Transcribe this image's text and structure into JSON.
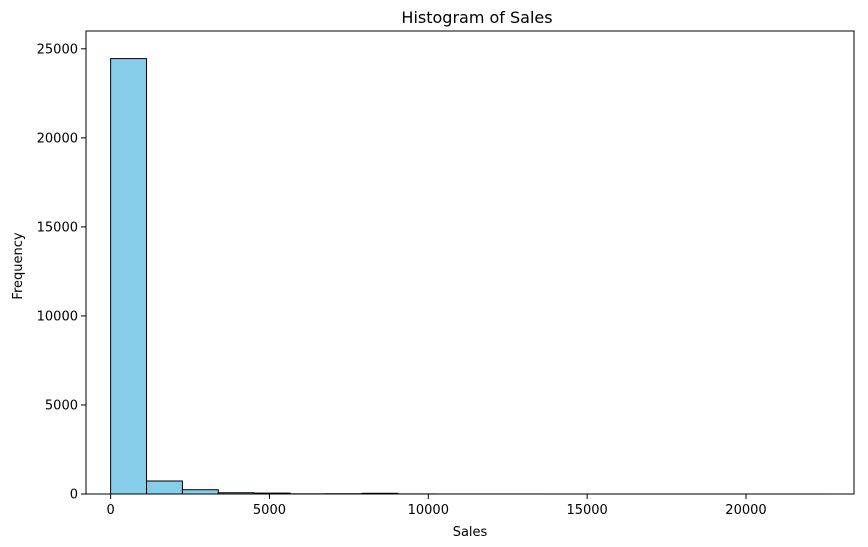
{
  "chart_data": {
    "type": "bar",
    "title": "Histogram of Sales",
    "xlabel": "Sales",
    "ylabel": "Frequency",
    "xlim": [
      -775,
      23400
    ],
    "ylim": [
      0,
      26000
    ],
    "xticks": [
      0,
      5000,
      10000,
      15000,
      20000
    ],
    "yticks": [
      0,
      5000,
      10000,
      15000,
      20000,
      25000
    ],
    "xtick_labels": [
      "0",
      "5000",
      "10000",
      "15000",
      "20000"
    ],
    "ytick_labels": [
      "0",
      "5000",
      "10000",
      "15000",
      "20000",
      "25000"
    ],
    "bin_edges": [
      0,
      1130,
      2260,
      3390,
      4520,
      5650,
      6780,
      7910,
      9040,
      10170,
      11300,
      12430,
      13560,
      14690,
      15820,
      16950,
      18080,
      19210,
      20340,
      21470,
      22600
    ],
    "values": [
      24450,
      730,
      240,
      70,
      50,
      10,
      15,
      40,
      5,
      3,
      2,
      2,
      1,
      1,
      1,
      1,
      1,
      1,
      1,
      1
    ],
    "bar_color": "#87ceeb",
    "edge_color": "#000000",
    "grid": false
  }
}
